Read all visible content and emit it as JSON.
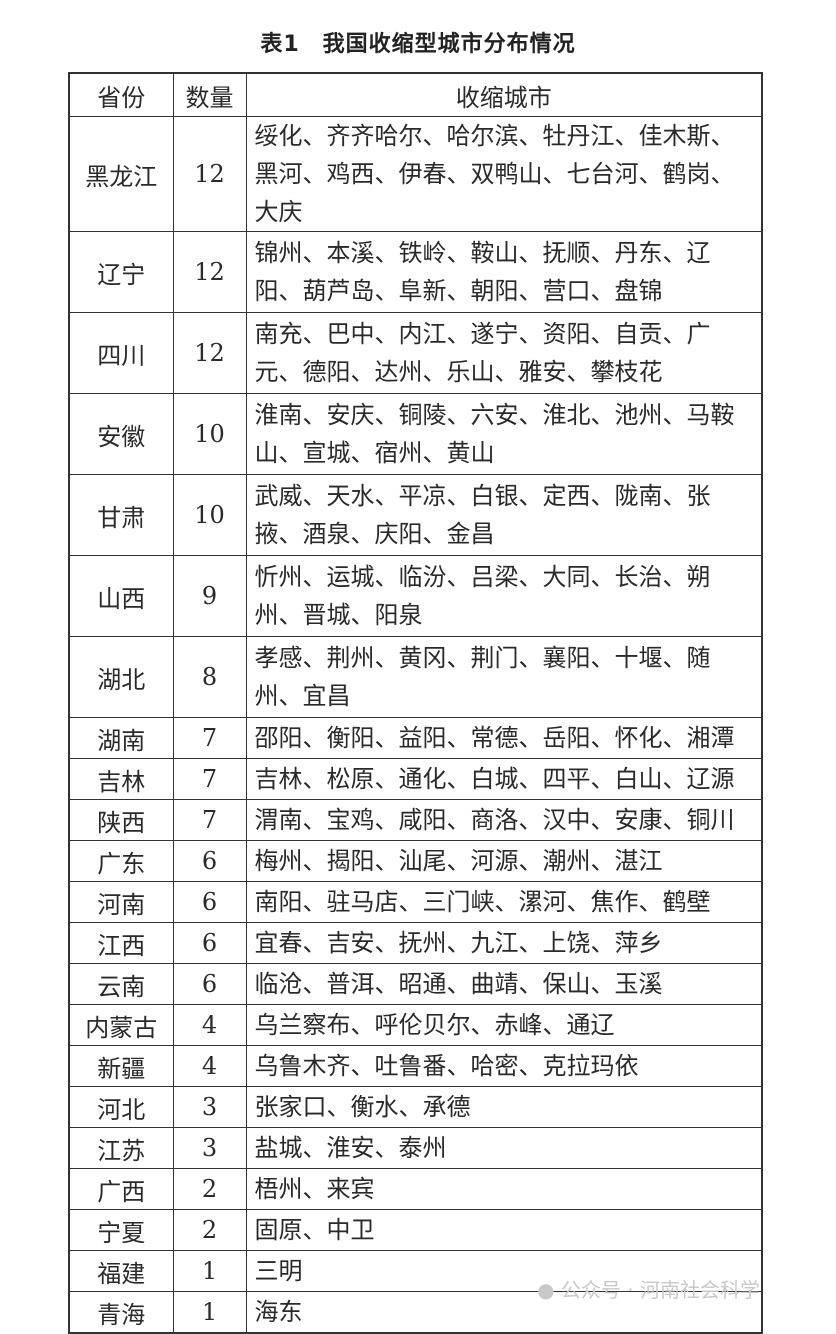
{
  "title": "表1　我国收缩型城市分布情况",
  "table": {
    "headers": [
      "省份",
      "数量",
      "收缩城市"
    ],
    "rows": [
      {
        "province": "黑龙江",
        "count": "12",
        "cities": "绥化、齐齐哈尔、哈尔滨、牡丹江、佳木斯、黑河、鸡西、伊春、双鸭山、七台河、鹤岗、大庆"
      },
      {
        "province": "辽宁",
        "count": "12",
        "cities": "锦州、本溪、铁岭、鞍山、抚顺、丹东、辽阳、葫芦岛、阜新、朝阳、营口、盘锦"
      },
      {
        "province": "四川",
        "count": "12",
        "cities": "南充、巴中、内江、遂宁、资阳、自贡、广元、德阳、达州、乐山、雅安、攀枝花"
      },
      {
        "province": "安徽",
        "count": "10",
        "cities": "淮南、安庆、铜陵、六安、淮北、池州、马鞍山、宣城、宿州、黄山"
      },
      {
        "province": "甘肃",
        "count": "10",
        "cities": "武威、天水、平凉、白银、定西、陇南、张掖、酒泉、庆阳、金昌"
      },
      {
        "province": "山西",
        "count": "9",
        "cities": "忻州、运城、临汾、吕梁、大同、长治、朔州、晋城、阳泉"
      },
      {
        "province": "湖北",
        "count": "8",
        "cities": "孝感、荆州、黄冈、荆门、襄阳、十堰、随州、宜昌"
      },
      {
        "province": "湖南",
        "count": "7",
        "cities": "邵阳、衡阳、益阳、常德、岳阳、怀化、湘潭"
      },
      {
        "province": "吉林",
        "count": "7",
        "cities": "吉林、松原、通化、白城、四平、白山、辽源"
      },
      {
        "province": "陕西",
        "count": "7",
        "cities": "渭南、宝鸡、咸阳、商洛、汉中、安康、铜川"
      },
      {
        "province": "广东",
        "count": "6",
        "cities": "梅州、揭阳、汕尾、河源、潮州、湛江"
      },
      {
        "province": "河南",
        "count": "6",
        "cities": "南阳、驻马店、三门峡、漯河、焦作、鹤壁"
      },
      {
        "province": "江西",
        "count": "6",
        "cities": "宜春、吉安、抚州、九江、上饶、萍乡"
      },
      {
        "province": "云南",
        "count": "6",
        "cities": "临沧、普洱、昭通、曲靖、保山、玉溪"
      },
      {
        "province": "内蒙古",
        "count": "4",
        "cities": "乌兰察布、呼伦贝尔、赤峰、通辽"
      },
      {
        "province": "新疆",
        "count": "4",
        "cities": "乌鲁木齐、吐鲁番、哈密、克拉玛依"
      },
      {
        "province": "河北",
        "count": "3",
        "cities": "张家口、衡水、承德"
      },
      {
        "province": "江苏",
        "count": "3",
        "cities": "盐城、淮安、泰州"
      },
      {
        "province": "广西",
        "count": "2",
        "cities": "梧州、来宾"
      },
      {
        "province": "宁夏",
        "count": "2",
        "cities": "固原、中卫"
      },
      {
        "province": "福建",
        "count": "1",
        "cities": "三明"
      },
      {
        "province": "青海",
        "count": "1",
        "cities": "海东"
      }
    ]
  },
  "watermark": "公众号 · 河南社会科学"
}
